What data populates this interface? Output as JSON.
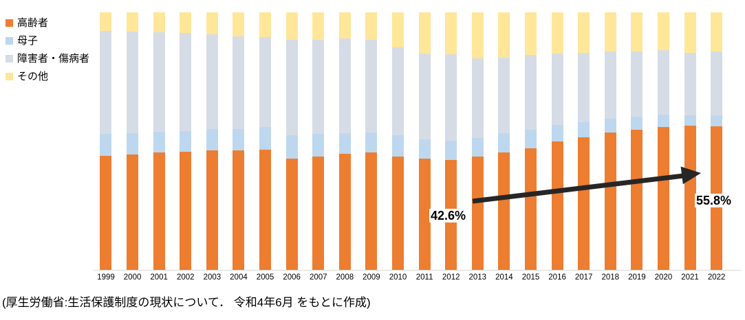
{
  "page": {
    "background": "#ffffff"
  },
  "legend": {
    "position": "top-left",
    "items": [
      {
        "key": "elderly",
        "label": "高齢者",
        "color": "#ED7D31"
      },
      {
        "key": "mother-child",
        "label": "母子",
        "color": "#BDD7EE"
      },
      {
        "key": "disabled-sick",
        "label": "障害者・傷病者",
        "color": "#D6DCE5"
      },
      {
        "key": "other",
        "label": "その他",
        "color": "#FFE699"
      }
    ]
  },
  "chart_data": {
    "type": "bar",
    "stacked": true,
    "percent_stacked": true,
    "title": "",
    "xlabel": "",
    "ylabel": "",
    "ylim": [
      0,
      100
    ],
    "grid": false,
    "axis_line_color": "#D9D9D9",
    "categories": [
      "1999",
      "2000",
      "2001",
      "2002",
      "2003",
      "2004",
      "2005",
      "2006",
      "2007",
      "2008",
      "2009",
      "2010",
      "2011",
      "2012",
      "2013",
      "2014",
      "2015",
      "2016",
      "2017",
      "2018",
      "2019",
      "2020",
      "2021",
      "2022"
    ],
    "series": [
      {
        "key": "elderly",
        "name": "高齢者",
        "color": "#ED7D31",
        "values": [
          44.3,
          44.8,
          45.5,
          46.0,
          46.3,
          46.3,
          46.6,
          43.3,
          44.1,
          45.0,
          45.6,
          44.1,
          43.1,
          42.6,
          44.0,
          45.6,
          47.3,
          49.9,
          51.6,
          53.4,
          54.4,
          55.4,
          55.9,
          55.8
        ]
      },
      {
        "key": "mother-child",
        "name": "母子",
        "color": "#BDD7EE",
        "values": [
          8.4,
          8.2,
          8.2,
          8.0,
          8.3,
          8.5,
          8.8,
          8.9,
          8.6,
          8.0,
          7.6,
          8.3,
          7.6,
          7.4,
          7.3,
          7.4,
          7.1,
          6.4,
          5.8,
          5.4,
          5.2,
          4.8,
          4.2,
          4.2
        ]
      },
      {
        "key": "disabled-sick",
        "name": "障害者・傷病者",
        "color": "#D6DCE5",
        "values": [
          40.2,
          39.5,
          38.7,
          38.0,
          36.9,
          36.0,
          34.9,
          37.1,
          36.6,
          36.9,
          36.1,
          34.0,
          33.3,
          33.7,
          30.8,
          29.4,
          29.2,
          27.6,
          26.8,
          25.9,
          25.3,
          25.1,
          24.1,
          24.7
        ]
      },
      {
        "key": "other",
        "name": "その他",
        "color": "#FFE699",
        "values": [
          7.1,
          7.5,
          7.6,
          8.0,
          8.5,
          9.2,
          9.7,
          10.7,
          10.7,
          10.1,
          10.7,
          13.6,
          16.0,
          16.3,
          17.9,
          17.6,
          16.4,
          16.1,
          15.8,
          15.3,
          15.1,
          14.7,
          15.8,
          15.3
        ]
      }
    ],
    "annotations": {
      "start_label": {
        "text": "42.6%",
        "refers_to": "高齢者 2012"
      },
      "end_label": {
        "text": "55.8%",
        "refers_to": "高齢者 2022"
      },
      "arrow": {
        "color": "#262626",
        "from_category": "2013",
        "to_category": "2022",
        "meaning": "elderly share rising"
      }
    }
  },
  "caption": "(厚生労働省:生活保護制度の現状について． 令和4年6月 をもとに作成)"
}
